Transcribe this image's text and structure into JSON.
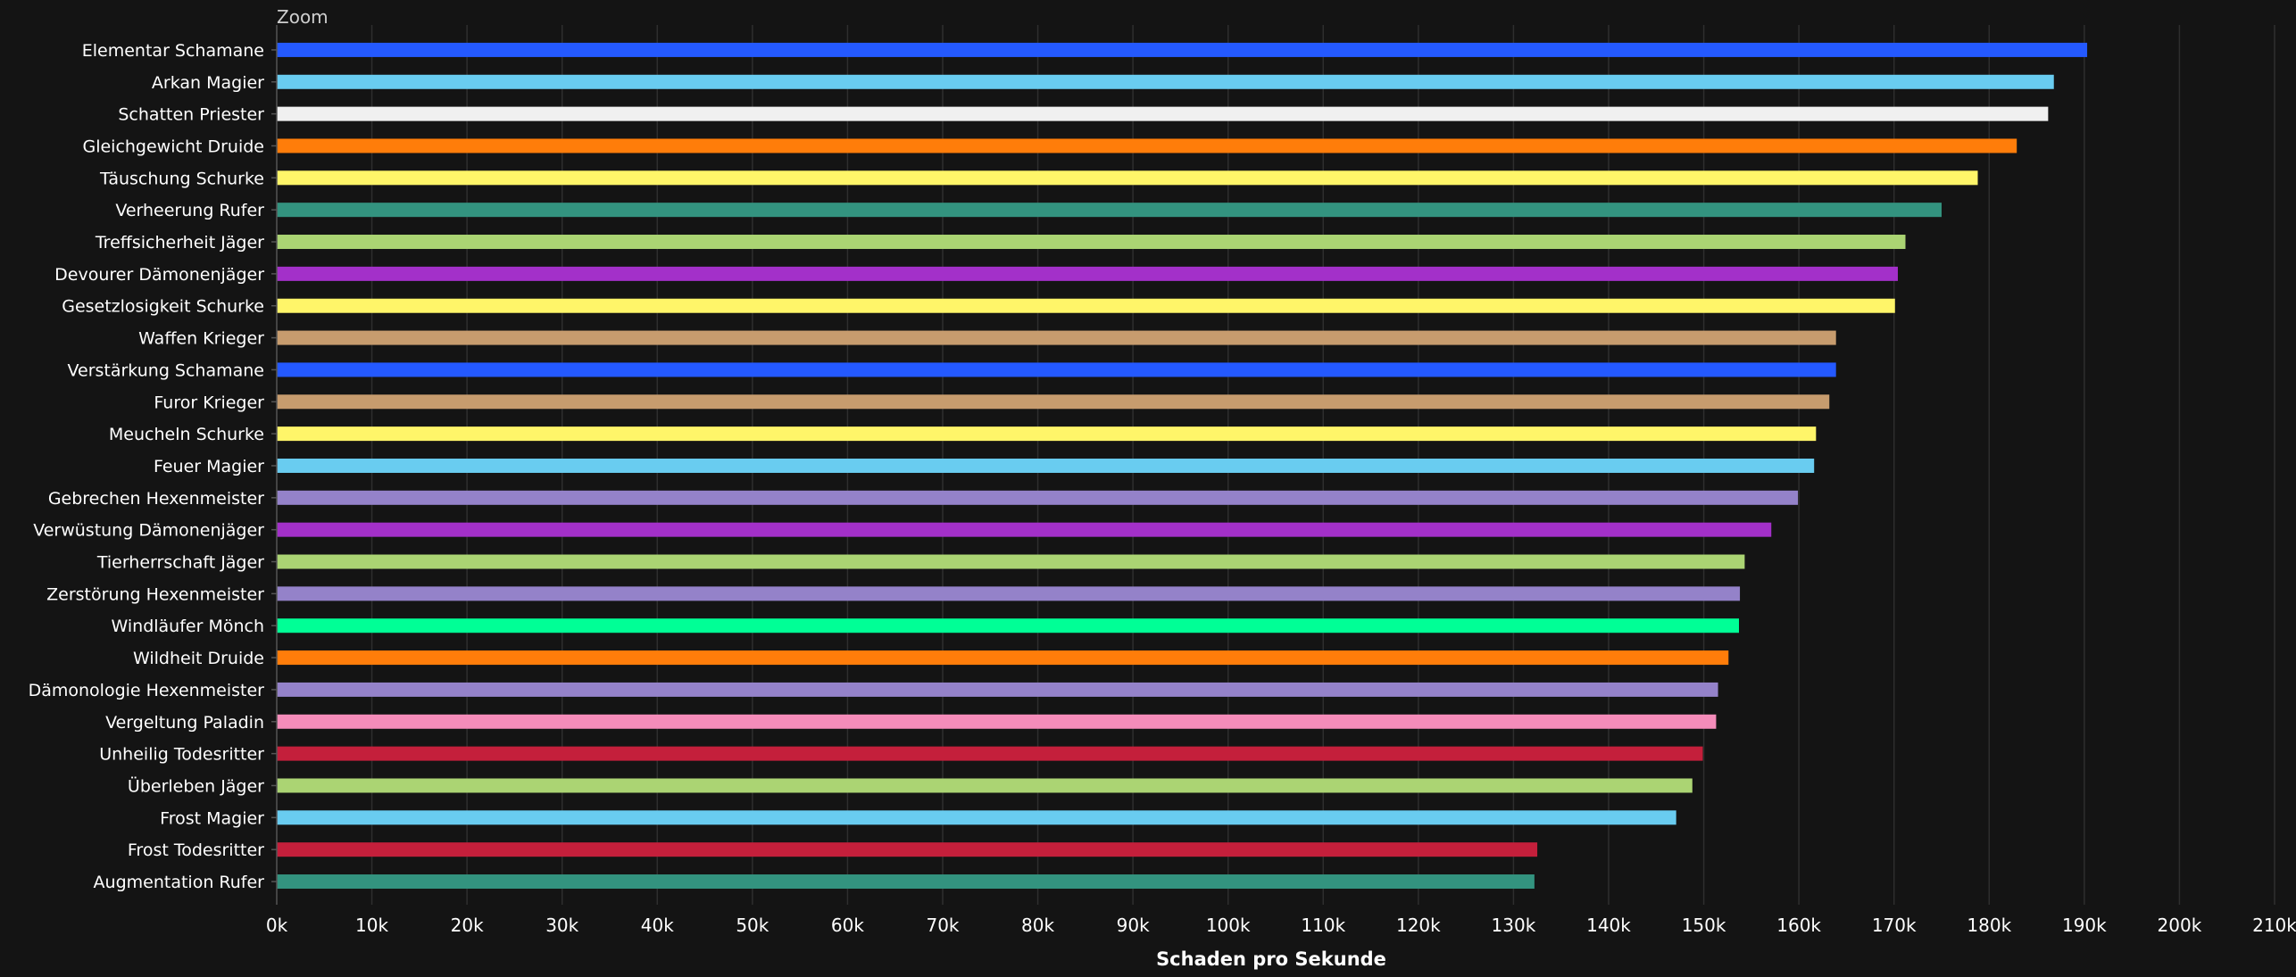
{
  "zoom_label": "Zoom",
  "chart_data": {
    "type": "bar",
    "orientation": "horizontal",
    "xlabel": "Schaden pro Sekunde",
    "ylabel": "",
    "xlim": [
      0,
      210000
    ],
    "x_ticks": [
      0,
      10000,
      20000,
      30000,
      40000,
      50000,
      60000,
      70000,
      80000,
      90000,
      100000,
      110000,
      120000,
      130000,
      140000,
      150000,
      160000,
      170000,
      180000,
      190000,
      200000,
      210000
    ],
    "x_tick_labels": [
      "0k",
      "10k",
      "20k",
      "30k",
      "40k",
      "50k",
      "60k",
      "70k",
      "80k",
      "90k",
      "100k",
      "110k",
      "120k",
      "130k",
      "140k",
      "150k",
      "160k",
      "170k",
      "180k",
      "190k",
      "200k",
      "210k"
    ],
    "grid": true,
    "legend": "none",
    "categories": [
      "Elementar Schamane",
      "Arkan Magier",
      "Schatten Priester",
      "Gleichgewicht Druide",
      "Täuschung Schurke",
      "Verheerung Rufer",
      "Treffsicherheit Jäger",
      "Devourer Dämonenjäger",
      "Gesetzlosigkeit Schurke",
      "Waffen Krieger",
      "Verstärkung Schamane",
      "Furor Krieger",
      "Meucheln Schurke",
      "Feuer Magier",
      "Gebrechen Hexenmeister",
      "Verwüstung Dämonenjäger",
      "Tierherrschaft Jäger",
      "Zerstörung Hexenmeister",
      "Windläufer Mönch",
      "Wildheit Druide",
      "Dämonologie Hexenmeister",
      "Vergeltung Paladin",
      "Unheilig Todesritter",
      "Überleben Jäger",
      "Frost Magier",
      "Frost Todesritter",
      "Augmentation Rufer"
    ],
    "values": [
      190300,
      186800,
      186200,
      182900,
      178800,
      175000,
      171200,
      170400,
      170100,
      163900,
      163900,
      163200,
      161800,
      161600,
      159900,
      157100,
      154300,
      153800,
      153700,
      152600,
      151500,
      151300,
      149900,
      148800,
      147100,
      132500,
      132200
    ],
    "colors": [
      "#2459FF",
      "#69CCF0",
      "#F0F0F0",
      "#FF7D0A",
      "#FFF569",
      "#33937F",
      "#ABD473",
      "#A330C9",
      "#FFF569",
      "#C79C6E",
      "#2459FF",
      "#C79C6E",
      "#FFF569",
      "#69CCF0",
      "#9482C9",
      "#A330C9",
      "#ABD473",
      "#9482C9",
      "#00FF96",
      "#FF7D0A",
      "#9482C9",
      "#F58CBA",
      "#C41F3B",
      "#ABD473",
      "#69CCF0",
      "#C41F3B",
      "#33937F"
    ]
  }
}
